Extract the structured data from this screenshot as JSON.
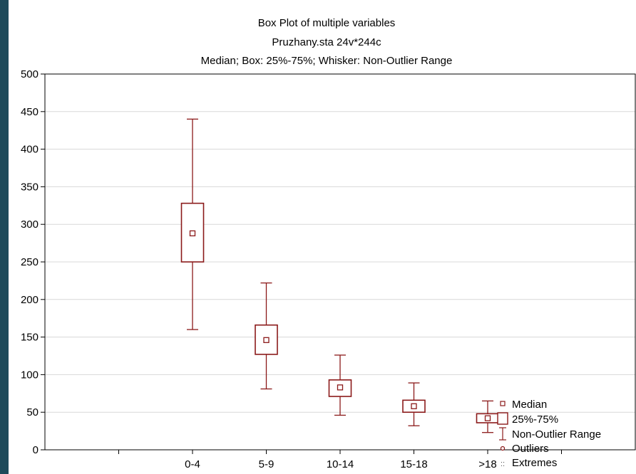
{
  "chart_data": {
    "type": "box",
    "title": "Box Plot of multiple variables",
    "subtitle": "Pruzhany.sta 24v*244c",
    "description_line": "Median; Box: 25%-75%; Whisker: Non-Outlier Range",
    "categories": [
      "0-4",
      "5-9",
      "10-14",
      "15-18",
      ">18"
    ],
    "series": [
      {
        "values": [
          {
            "category": "0-4",
            "min": 160,
            "q1": 250,
            "median": 288,
            "q3": 328,
            "max": 440
          },
          {
            "category": "5-9",
            "min": 81,
            "q1": 127,
            "median": 146,
            "q3": 166,
            "max": 222
          },
          {
            "category": "10-14",
            "min": 46,
            "q1": 71,
            "median": 83,
            "q3": 93,
            "max": 126
          },
          {
            "category": "15-18",
            "min": 32,
            "q1": 50,
            "median": 58,
            "q3": 66,
            "max": 89
          },
          {
            "category": ">18",
            "min": 23,
            "q1": 36,
            "median": 42,
            "q3": 48,
            "max": 65
          }
        ]
      }
    ],
    "ylim": [
      0,
      500
    ],
    "yticks": [
      "0",
      "50",
      "100",
      "150",
      "200",
      "250",
      "300",
      "350",
      "400",
      "450",
      "500"
    ],
    "grid": true,
    "legend_position": "bottom-right",
    "legend": [
      "Median",
      "25%-75%",
      "Non-Outlier Range",
      "Outliers",
      "Extremes"
    ],
    "color": "#8b1a1a"
  }
}
